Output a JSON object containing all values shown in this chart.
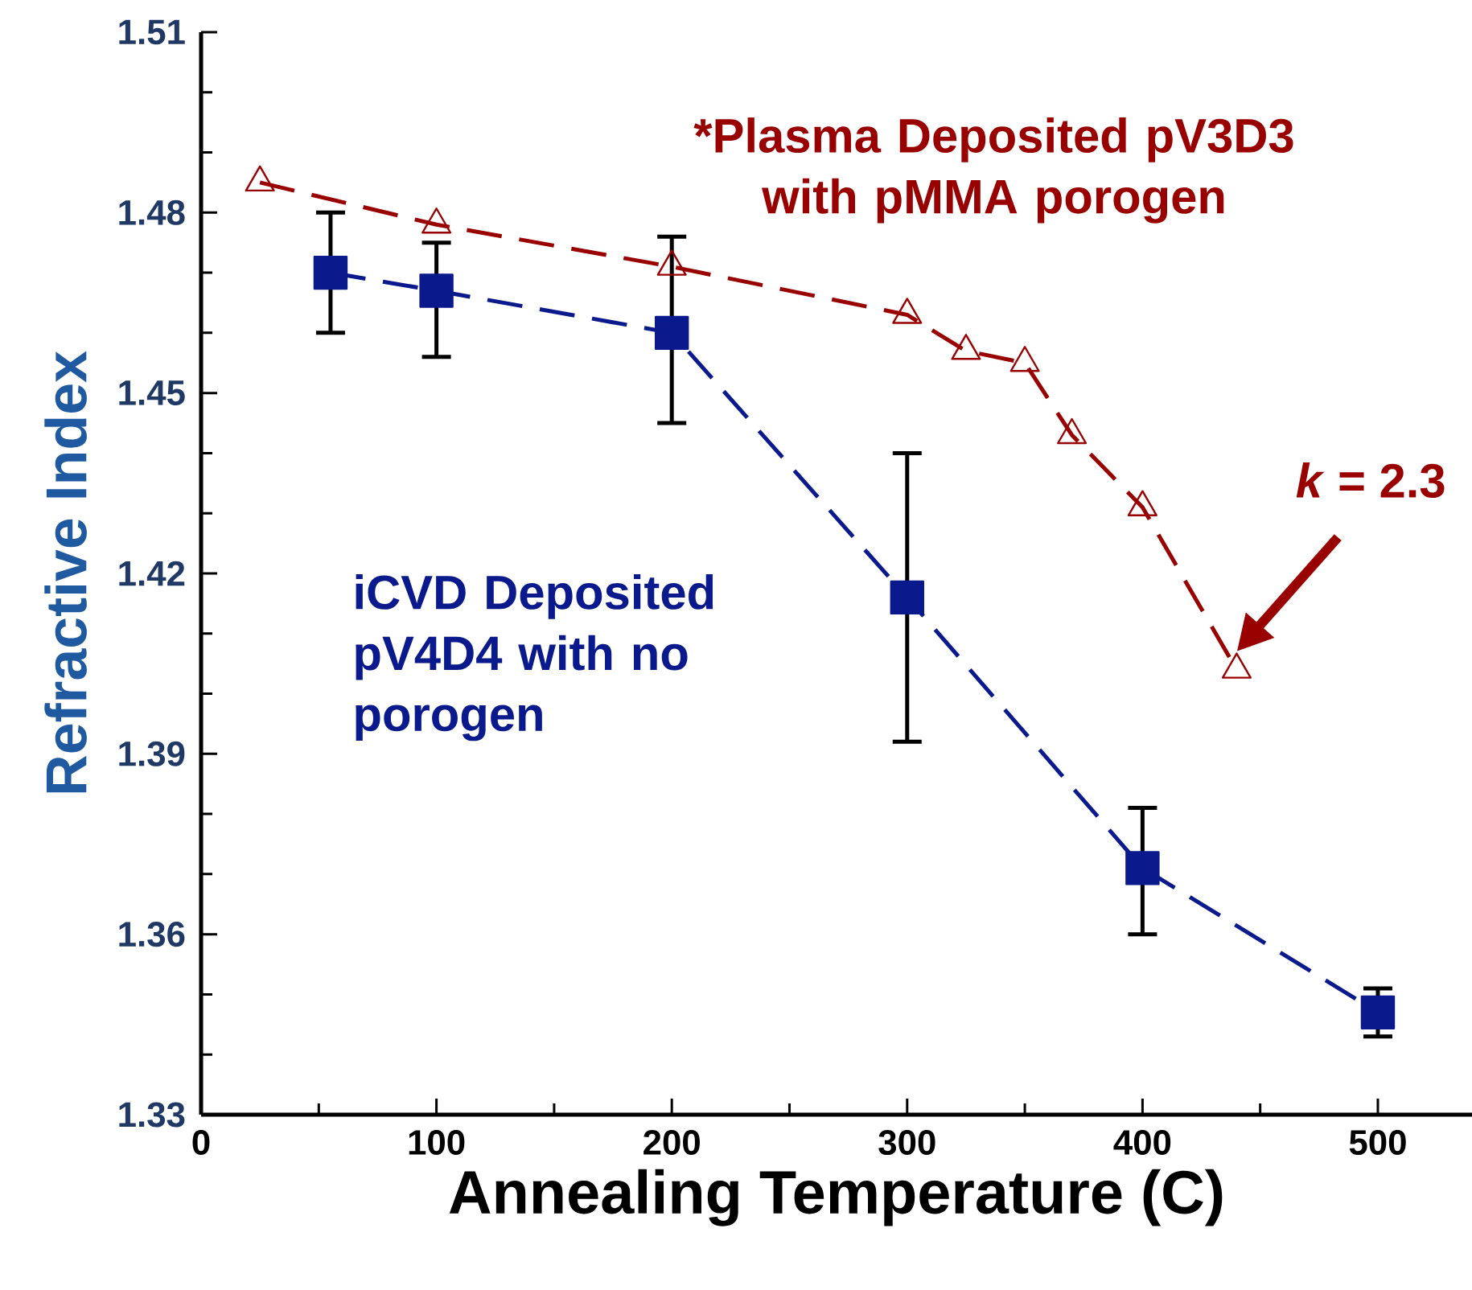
{
  "chart_data": {
    "type": "line",
    "xlabel": "Annealing Temperature (C)",
    "ylabel": "Refractive Index",
    "xlim": [
      0,
      540
    ],
    "xticks": [
      0,
      100,
      200,
      300,
      400,
      500
    ],
    "ylim": [
      1.33,
      1.51
    ],
    "yticks": [
      1.33,
      1.36,
      1.39,
      1.42,
      1.45,
      1.48,
      1.51
    ],
    "line_style": "dashed",
    "series": [
      {
        "name": "*Plasma Deposited pV3D3 with pMMA porogen",
        "color": "#990000",
        "marker": "triangle",
        "x": [
          25,
          100,
          200,
          300,
          325,
          350,
          370,
          400,
          440
        ],
        "values": [
          1.485,
          1.478,
          1.471,
          1.463,
          1.457,
          1.455,
          1.443,
          1.431,
          1.404
        ]
      },
      {
        "name": "iCVD Deposited pV4D4 with no porogen",
        "color": "#0a1a8c",
        "marker": "square",
        "x": [
          55,
          100,
          200,
          300,
          400,
          500
        ],
        "values": [
          1.47,
          1.467,
          1.46,
          1.416,
          1.371,
          1.347
        ],
        "errors": [
          [
            1.46,
            1.48
          ],
          [
            1.456,
            1.475
          ],
          [
            1.445,
            1.476
          ],
          [
            1.392,
            1.44
          ],
          [
            1.36,
            1.381
          ],
          [
            1.343,
            1.351
          ]
        ]
      }
    ],
    "annotations": [
      "*k* = 2.3"
    ]
  }
}
